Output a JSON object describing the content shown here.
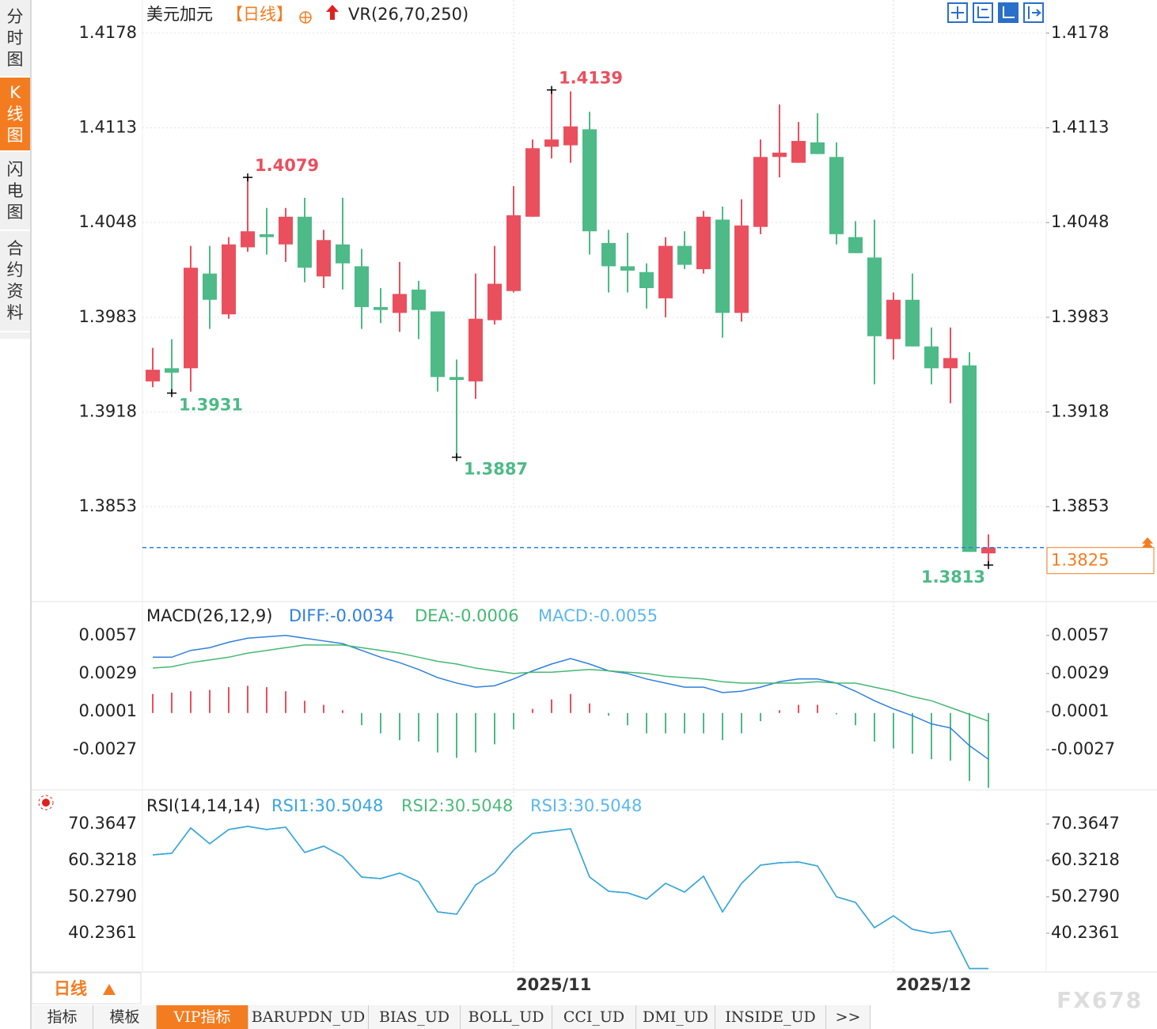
{
  "sidebar_tabs": [
    "分时图",
    "K线图",
    "闪电图",
    "合约资料"
  ],
  "period_tab": "日线",
  "toolbar_tabs": [
    "指标",
    "模板",
    "VIP指标",
    "BARUPDN_UD",
    "BIAS_UD",
    "BOLL_UD",
    "CCI_UD",
    "DMI_UD",
    "INSIDE_UD",
    ">>"
  ],
  "watermark": "FX678",
  "chart_data": [
    {
      "type": "candlestick",
      "title": "美元加元",
      "period": "【日线】",
      "indicator": "VR(26,70,250)",
      "categories": [
        null,
        null,
        null,
        null,
        null,
        null,
        null,
        null,
        null,
        null,
        null,
        null,
        null,
        null,
        null,
        null,
        null,
        null,
        null,
        "2025/11",
        null,
        null,
        null,
        null,
        null,
        null,
        null,
        null,
        null,
        null,
        null,
        null,
        null,
        null,
        null,
        null,
        null,
        null,
        null,
        "2025/12",
        null,
        null,
        null,
        null,
        null
      ],
      "open": [
        1.3939,
        1.3948,
        1.3948,
        1.4013,
        1.3985,
        1.4031,
        1.404,
        1.4033,
        1.4052,
        1.4011,
        1.4033,
        1.4018,
        1.399,
        1.3986,
        1.4002,
        1.3987,
        1.3942,
        1.3939,
        1.3981,
        1.4001,
        1.4052,
        1.41,
        1.4101,
        1.4112,
        1.4034,
        1.4018,
        1.4014,
        1.3996,
        1.4032,
        1.4016,
        1.405,
        1.3986,
        1.4045,
        1.4093,
        1.4089,
        1.4103,
        1.4093,
        1.4038,
        1.4024,
        1.3968,
        1.3995,
        1.3963,
        1.3948,
        1.395,
        1.3821
      ],
      "high": [
        1.3962,
        1.3968,
        1.4032,
        1.4032,
        1.4038,
        1.4079,
        1.4058,
        1.4058,
        1.4065,
        1.4043,
        1.4065,
        1.403,
        1.4003,
        1.4021,
        1.4008,
        1.3987,
        1.3954,
        1.4013,
        1.4032,
        1.4073,
        1.4105,
        1.4139,
        1.4138,
        1.4124,
        1.4043,
        1.4041,
        1.402,
        1.4038,
        1.4042,
        1.4056,
        1.4059,
        1.4064,
        1.4105,
        1.4129,
        1.4117,
        1.4123,
        1.4103,
        1.4049,
        1.405,
        1.4,
        1.4013,
        1.3976,
        1.3976,
        1.3959,
        1.3834
      ],
      "low": [
        1.3935,
        1.3931,
        1.3932,
        1.3975,
        1.3982,
        1.4028,
        1.4026,
        1.4021,
        1.4007,
        1.4003,
        1.4002,
        1.3975,
        1.3979,
        1.3973,
        1.3968,
        1.3932,
        1.3887,
        1.3927,
        1.3978,
        1.4,
        1.4052,
        1.4092,
        1.4089,
        1.4026,
        1.4,
        1.4,
        1.3989,
        1.3983,
        1.4016,
        1.4013,
        1.3969,
        1.398,
        1.404,
        1.4079,
        1.4089,
        1.4095,
        1.4033,
        1.4027,
        1.3937,
        1.3954,
        1.3963,
        1.3937,
        1.3924,
        1.3822,
        1.3813
      ],
      "close": [
        1.3947,
        1.3945,
        1.4017,
        1.3995,
        1.4033,
        1.4042,
        1.4038,
        1.4052,
        1.4017,
        1.4036,
        1.402,
        1.399,
        1.3988,
        1.3999,
        1.3988,
        1.3942,
        1.394,
        1.3982,
        1.4006,
        1.4053,
        1.4099,
        1.4105,
        1.4114,
        1.4042,
        1.4018,
        1.4015,
        1.4003,
        1.4032,
        1.4019,
        1.4052,
        1.3986,
        1.4046,
        1.4093,
        1.4096,
        1.4104,
        1.4095,
        1.404,
        1.4027,
        1.397,
        1.3995,
        1.3963,
        1.3948,
        1.3955,
        1.3822,
        1.3825
      ],
      "up_color": "#ea4f5e",
      "down_color": "#4dba87",
      "annotations": [
        1.4079,
        1.3931,
        1.3887,
        1.4139,
        1.3813
      ],
      "last_price": 1.3825,
      "ylim": [
        1.3789,
        1.4198
      ],
      "yticks": [
        1.4178,
        1.4113,
        1.4048,
        1.3983,
        1.3918,
        1.3853
      ],
      "grid": true
    },
    {
      "type": "macd",
      "title": "MACD(26,12,9)",
      "series": [
        {
          "name": "DIFF:-0.0034",
          "color": "#2f80dc",
          "values": [
            0.0041,
            0.0041,
            0.0046,
            0.0048,
            0.0052,
            0.0055,
            0.0056,
            0.0057,
            0.0055,
            0.0053,
            0.0051,
            0.0046,
            0.0041,
            0.0037,
            0.0032,
            0.0026,
            0.0022,
            0.0019,
            0.002,
            0.0025,
            0.0031,
            0.0036,
            0.004,
            0.0036,
            0.0031,
            0.0029,
            0.0025,
            0.0022,
            0.0019,
            0.0019,
            0.0015,
            0.0016,
            0.0019,
            0.0023,
            0.0025,
            0.0025,
            0.0022,
            0.0016,
            0.0009,
            0.0003,
            -0.0002,
            -0.0008,
            -0.0011,
            -0.0024,
            -0.0034
          ]
        },
        {
          "name": "DEA:-0.0006",
          "color": "#45b872",
          "values": [
            0.0033,
            0.0034,
            0.0037,
            0.0039,
            0.0041,
            0.0044,
            0.0046,
            0.0048,
            0.005,
            0.005,
            0.005,
            0.0048,
            0.0046,
            0.0044,
            0.0041,
            0.0038,
            0.0036,
            0.0033,
            0.0031,
            0.0029,
            0.003,
            0.003,
            0.0031,
            0.0032,
            0.0031,
            0.003,
            0.0029,
            0.0027,
            0.0026,
            0.0025,
            0.0023,
            0.0022,
            0.0022,
            0.0022,
            0.0022,
            0.0023,
            0.0022,
            0.0022,
            0.0019,
            0.0016,
            0.0012,
            0.0009,
            0.0004,
            -0.0001,
            -0.0006
          ]
        }
      ],
      "histogram": {
        "name": "MACD:-0.0055",
        "color": "#5bb7ef",
        "up_color": "#ea4f5e",
        "down_color": "#4dba87",
        "values": [
          0.0014,
          0.0015,
          0.0016,
          0.0017,
          0.0019,
          0.002,
          0.0019,
          0.0016,
          0.0009,
          0.0006,
          0.0002,
          -0.0009,
          -0.0015,
          -0.002,
          -0.0021,
          -0.0029,
          -0.0033,
          -0.0029,
          -0.0023,
          -0.0012,
          0.0003,
          0.001,
          0.0014,
          0.0007,
          -0.0002,
          -0.0009,
          -0.0015,
          -0.0015,
          -0.0015,
          -0.0015,
          -0.002,
          -0.0015,
          -0.0006,
          0.0002,
          0.0006,
          0.0006,
          -0.0001,
          -0.0009,
          -0.0021,
          -0.0026,
          -0.003,
          -0.0034,
          -0.0035,
          -0.005,
          -0.0055
        ]
      },
      "ylim": [
        -0.0056,
        0.0079
      ],
      "yticks": [
        0.0057,
        0.0029,
        0.0001,
        -0.0027
      ],
      "grid": false
    },
    {
      "type": "line",
      "title": "RSI(14,14,14)",
      "series": [
        {
          "name": "RSI1:30.5048",
          "color": "#3aa6e0",
          "values": [
            61.85,
            62.28,
            69.27,
            64.91,
            68.84,
            69.71,
            68.84,
            69.49,
            62.5,
            64.25,
            61.41,
            55.74,
            55.3,
            56.83,
            54.43,
            46.13,
            45.48,
            53.56,
            56.83,
            63.16,
            67.75,
            68.4,
            69.05,
            55.74,
            51.81,
            51.37,
            49.63,
            53.99,
            51.59,
            55.96,
            46.13,
            53.99,
            59.01,
            59.67,
            59.89,
            58.79,
            50.28,
            48.75,
            41.77,
            45.04,
            41.33,
            40.24,
            40.89,
            30.5048,
            30.5048
          ]
        },
        {
          "name": "RSI2:30.5048",
          "color": "#4cba7a",
          "values": [
            61.85,
            62.28,
            69.27,
            64.91,
            68.84,
            69.71,
            68.84,
            69.49,
            62.5,
            64.25,
            61.41,
            55.74,
            55.3,
            56.83,
            54.43,
            46.13,
            45.48,
            53.56,
            56.83,
            63.16,
            67.75,
            68.4,
            69.05,
            55.74,
            51.81,
            51.37,
            49.63,
            53.99,
            51.59,
            55.96,
            46.13,
            53.99,
            59.01,
            59.67,
            59.89,
            58.79,
            50.28,
            48.75,
            41.77,
            45.04,
            41.33,
            40.24,
            40.89,
            30.5048,
            30.5048
          ]
        },
        {
          "name": "RSI3:30.5048",
          "color": "#5bb7ef",
          "values": [
            61.85,
            62.28,
            69.27,
            64.91,
            68.84,
            69.71,
            68.84,
            69.49,
            62.5,
            64.25,
            61.41,
            55.74,
            55.3,
            56.83,
            54.43,
            46.13,
            45.48,
            53.56,
            56.83,
            63.16,
            67.75,
            68.4,
            69.05,
            55.74,
            51.81,
            51.37,
            49.63,
            53.99,
            51.59,
            55.96,
            46.13,
            53.99,
            59.01,
            59.67,
            59.89,
            58.79,
            50.28,
            48.75,
            41.77,
            45.04,
            41.33,
            40.24,
            40.89,
            30.5048,
            30.5048
          ]
        }
      ],
      "ylim": [
        29.76,
        79.31
      ],
      "yticks": [
        70.3647,
        60.3218,
        {
          "value": 50.279,
          "label": "50.2790"
        },
        40.2361
      ],
      "grid": false
    }
  ]
}
